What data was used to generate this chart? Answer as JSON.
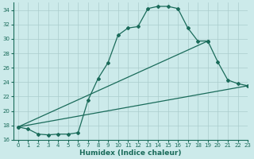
{
  "xlabel": "Humidex (Indice chaleur)",
  "bg_color": "#cceaea",
  "grid_color": "#aacccc",
  "line_color": "#1a6b5a",
  "xlim": [
    -0.5,
    23
  ],
  "ylim": [
    16,
    35
  ],
  "xticks": [
    0,
    1,
    2,
    3,
    4,
    5,
    6,
    7,
    8,
    9,
    10,
    11,
    12,
    13,
    14,
    15,
    16,
    17,
    18,
    19,
    20,
    21,
    22,
    23
  ],
  "yticks": [
    16,
    18,
    20,
    22,
    24,
    26,
    28,
    30,
    32,
    34
  ],
  "line1_x": [
    0,
    1,
    2,
    3,
    4,
    5,
    6,
    7,
    8,
    9,
    10,
    11,
    12,
    13,
    14,
    15,
    16,
    17,
    18,
    19
  ],
  "line1_y": [
    17.8,
    17.5,
    16.8,
    16.7,
    16.8,
    16.8,
    17.0,
    21.5,
    24.5,
    26.7,
    30.5,
    31.5,
    31.7,
    34.2,
    34.5,
    34.5,
    34.2,
    31.5,
    29.7,
    29.7
  ],
  "line2_x": [
    0,
    19,
    20,
    21,
    22,
    23
  ],
  "line2_y": [
    17.8,
    29.7,
    26.8,
    24.3,
    23.8,
    23.5
  ],
  "line3_x": [
    0,
    23
  ],
  "line3_y": [
    17.8,
    23.5
  ],
  "marker": "D",
  "markersize": 2.0,
  "linewidth": 0.9,
  "tick_fontsize": 5.0,
  "xlabel_fontsize": 6.5
}
